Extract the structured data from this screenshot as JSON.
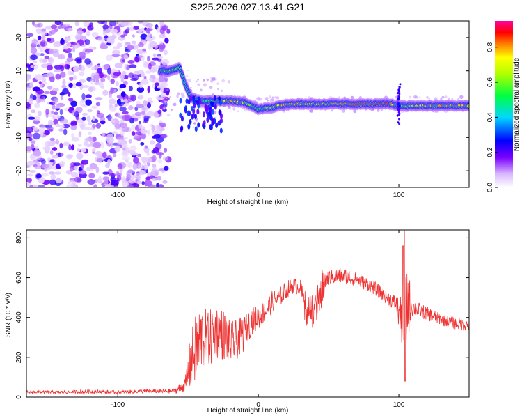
{
  "figure_title": "S225.2026.027.13.41.G21",
  "colorbar": {
    "label": "Normalized spectral amplitude",
    "ticks": [
      "0.0",
      "0.2",
      "0.4",
      "0.6",
      "0.8"
    ],
    "range": [
      0.0,
      0.95
    ]
  },
  "chart_data": [
    {
      "type": "heatmap",
      "title": "",
      "xlabel": "Height of straight line (km)",
      "ylabel": "Frequency (Hz)",
      "xlim": [
        -165,
        150
      ],
      "ylim": [
        -25,
        25
      ],
      "xticks": [
        -100,
        0,
        100
      ],
      "xtick_labels": [
        "-100",
        "0",
        "100"
      ],
      "yticks": [
        20,
        10,
        0,
        -10,
        -20
      ],
      "ytick_labels": [
        "20",
        "10",
        "0",
        "-10",
        "-20"
      ],
      "noise_region_x": [
        -165,
        -68
      ],
      "ridge": {
        "x": [
          -70,
          -62,
          -56,
          -52,
          -48,
          -44,
          -40,
          -30,
          -20,
          -10,
          -5,
          0,
          10,
          20,
          40,
          60,
          80,
          95,
          100,
          110,
          130,
          150
        ],
        "freq_hz": [
          10,
          10,
          11,
          6,
          2,
          1.5,
          1,
          1,
          1,
          0.5,
          -0.5,
          -1.5,
          -1,
          0,
          0,
          0,
          0,
          0,
          -0.5,
          -0.5,
          -0.5,
          -0.5
        ],
        "amplitude": [
          0.5,
          0.55,
          0.5,
          0.3,
          0.35,
          0.4,
          0.45,
          0.55,
          0.8,
          0.7,
          0.55,
          0.5,
          0.65,
          0.8,
          0.75,
          0.8,
          0.9,
          0.85,
          0.5,
          0.7,
          0.8,
          0.75
        ]
      }
    },
    {
      "type": "line",
      "title": "",
      "xlabel": "Height of straight line (km)",
      "ylabel": "SNR (10 * v/v)",
      "xlim": [
        -165,
        150
      ],
      "ylim": [
        0,
        840
      ],
      "xticks": [
        -100,
        0,
        100
      ],
      "xtick_labels": [
        "-100",
        "0",
        "100"
      ],
      "yticks": [
        0,
        200,
        400,
        600,
        800
      ],
      "ytick_labels": [
        "0",
        "200",
        "400",
        "600",
        "800"
      ],
      "series": [
        {
          "name": "SNR",
          "color": "#ee3333",
          "x": [
            -165,
            -140,
            -120,
            -100,
            -80,
            -60,
            -52,
            -48,
            -44,
            -40,
            -36,
            -30,
            -24,
            -20,
            -15,
            -10,
            -5,
            0,
            5,
            10,
            15,
            20,
            25,
            30,
            34,
            40,
            46,
            50,
            60,
            70,
            80,
            90,
            98,
            102,
            104,
            106,
            110,
            120,
            130,
            140,
            150
          ],
          "y": [
            25,
            25,
            28,
            25,
            30,
            30,
            60,
            180,
            250,
            300,
            280,
            330,
            310,
            270,
            290,
            320,
            380,
            400,
            430,
            480,
            500,
            540,
            560,
            550,
            430,
            440,
            560,
            600,
            610,
            590,
            560,
            510,
            470,
            380,
            300,
            480,
            450,
            420,
            390,
            370,
            360
          ],
          "noise": [
            8,
            8,
            10,
            8,
            10,
            12,
            40,
            150,
            180,
            170,
            150,
            140,
            130,
            110,
            100,
            90,
            70,
            60,
            60,
            55,
            50,
            45,
            40,
            40,
            70,
            70,
            40,
            40,
            40,
            35,
            35,
            35,
            40,
            120,
            250,
            200,
            40,
            35,
            30,
            30,
            30
          ]
        }
      ]
    }
  ]
}
